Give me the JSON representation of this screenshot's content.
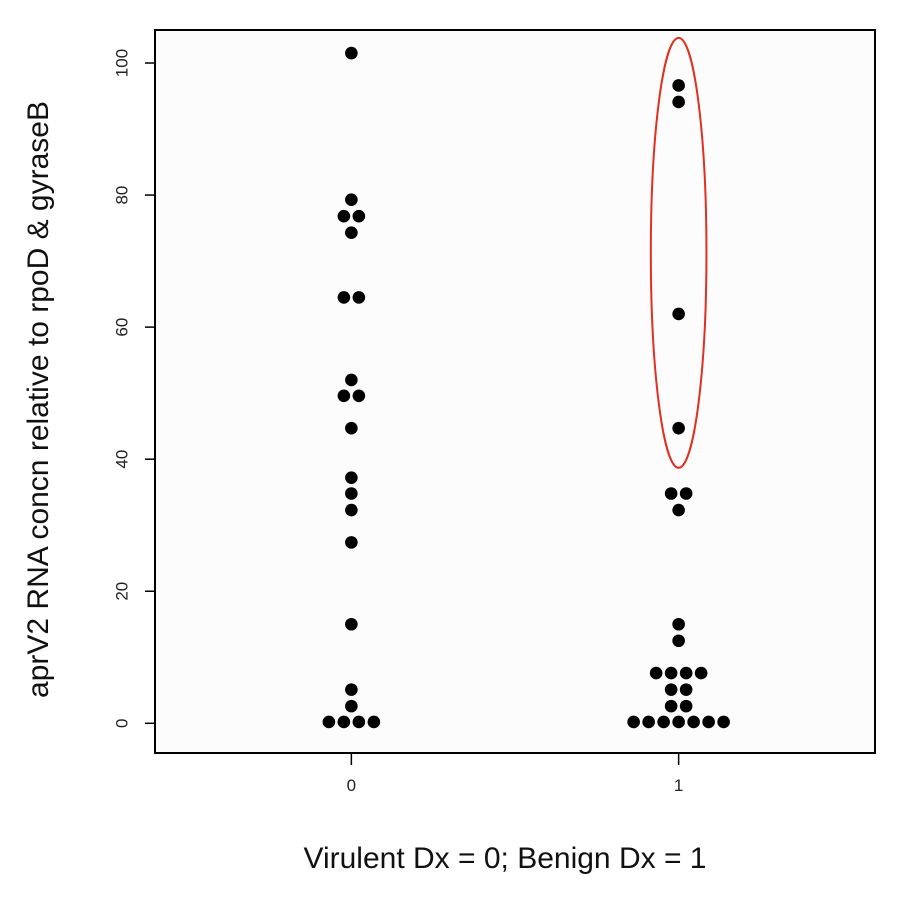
{
  "chart_data": {
    "type": "scatter",
    "title": "",
    "xlabel": "Virulent Dx = 0; Benign Dx = 1",
    "ylabel": "aprV2 RNA concn relative to rpoD & gyraseB",
    "xlim": [
      -0.6,
      1.6
    ],
    "ylim": [
      -4.5,
      105
    ],
    "x_ticks": [
      0,
      1
    ],
    "y_ticks": [
      0,
      20,
      40,
      60,
      80,
      100
    ],
    "grid": false,
    "legend": "none",
    "point_color": "#000000",
    "highlight_color": "#e03020",
    "series": [
      {
        "points": [
          {
            "x": 0,
            "y": 101.5
          },
          {
            "x": 0,
            "y": 79.3
          },
          {
            "x": 0,
            "y": 76.8
          },
          {
            "x": 0,
            "y": 76.8
          },
          {
            "x": 0,
            "y": 74.3
          },
          {
            "x": 0,
            "y": 64.5
          },
          {
            "x": 0,
            "y": 64.5
          },
          {
            "x": 0,
            "y": 52.0
          },
          {
            "x": 0,
            "y": 49.6
          },
          {
            "x": 0,
            "y": 49.6
          },
          {
            "x": 0,
            "y": 44.7
          },
          {
            "x": 0,
            "y": 37.2
          },
          {
            "x": 0,
            "y": 34.8
          },
          {
            "x": 0,
            "y": 32.3
          },
          {
            "x": 0,
            "y": 27.4
          },
          {
            "x": 0,
            "y": 15.0
          },
          {
            "x": 0,
            "y": 5.1
          },
          {
            "x": 0,
            "y": 2.6
          },
          {
            "x": 0,
            "y": 0.2
          },
          {
            "x": 0,
            "y": 0.2
          },
          {
            "x": 0,
            "y": 0.2
          },
          {
            "x": 0,
            "y": 0.2
          },
          {
            "x": 1,
            "y": 96.6
          },
          {
            "x": 1,
            "y": 94.1
          },
          {
            "x": 1,
            "y": 62.0
          },
          {
            "x": 1,
            "y": 44.7
          },
          {
            "x": 1,
            "y": 34.8
          },
          {
            "x": 1,
            "y": 34.8
          },
          {
            "x": 1,
            "y": 32.3
          },
          {
            "x": 1,
            "y": 15.0
          },
          {
            "x": 1,
            "y": 12.5
          },
          {
            "x": 1,
            "y": 7.6
          },
          {
            "x": 1,
            "y": 7.6
          },
          {
            "x": 1,
            "y": 7.6
          },
          {
            "x": 1,
            "y": 7.6
          },
          {
            "x": 1,
            "y": 5.1
          },
          {
            "x": 1,
            "y": 5.1
          },
          {
            "x": 1,
            "y": 2.6
          },
          {
            "x": 1,
            "y": 2.6
          },
          {
            "x": 1,
            "y": 0.2
          },
          {
            "x": 1,
            "y": 0.2
          },
          {
            "x": 1,
            "y": 0.2
          },
          {
            "x": 1,
            "y": 0.2
          },
          {
            "x": 1,
            "y": 0.2
          },
          {
            "x": 1,
            "y": 0.2
          },
          {
            "x": 1,
            "y": 0.2
          }
        ]
      }
    ],
    "annotations": [
      {
        "type": "ellipse",
        "x_center": 1,
        "y_range": [
          38.7,
          103.8
        ],
        "x_halfwidth": 0.085
      }
    ]
  }
}
